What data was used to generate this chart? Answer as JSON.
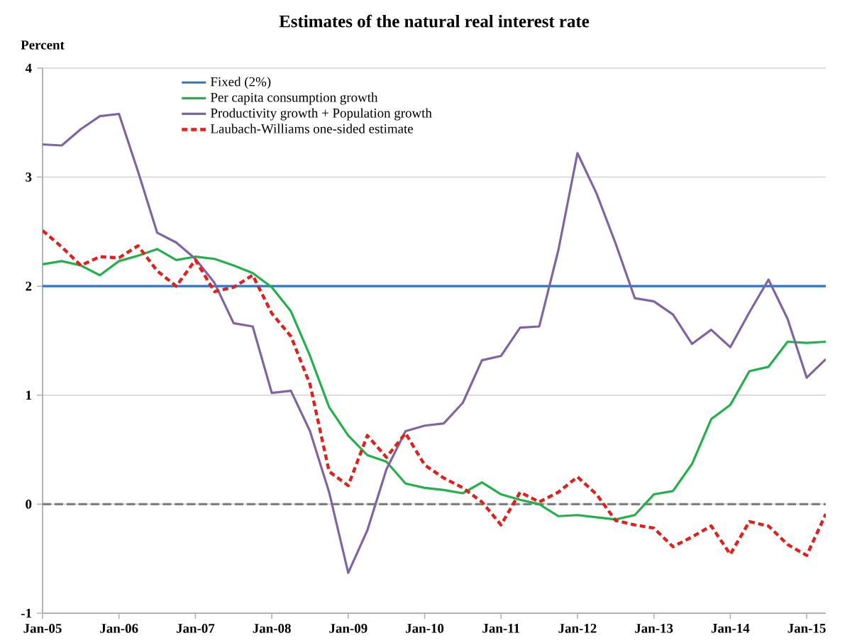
{
  "chart_data": {
    "type": "line",
    "title": "Estimates of the natural real interest rate",
    "ylabel": "Percent",
    "x": [
      "2005-01",
      "2005-04",
      "2005-07",
      "2005-10",
      "2006-01",
      "2006-04",
      "2006-07",
      "2006-10",
      "2007-01",
      "2007-04",
      "2007-07",
      "2007-10",
      "2008-01",
      "2008-04",
      "2008-07",
      "2008-10",
      "2009-01",
      "2009-04",
      "2009-07",
      "2009-10",
      "2010-01",
      "2010-04",
      "2010-07",
      "2010-10",
      "2011-01",
      "2011-04",
      "2011-07",
      "2011-10",
      "2012-01",
      "2012-04",
      "2012-07",
      "2012-10",
      "2013-01",
      "2013-04",
      "2013-07",
      "2013-10",
      "2014-01",
      "2014-04",
      "2014-07",
      "2014-10",
      "2015-01",
      "2015-04"
    ],
    "series": [
      {
        "name": "Fixed (2%)",
        "color": "#2e75c8",
        "line_style": "solid",
        "values": [
          2,
          2,
          2,
          2,
          2,
          2,
          2,
          2,
          2,
          2,
          2,
          2,
          2,
          2,
          2,
          2,
          2,
          2,
          2,
          2,
          2,
          2,
          2,
          2,
          2,
          2,
          2,
          2,
          2,
          2,
          2,
          2,
          2,
          2,
          2,
          2,
          2,
          2,
          2,
          2,
          2,
          2
        ]
      },
      {
        "name": "Per capita consumption growth",
        "color": "#22b04a",
        "line_style": "solid",
        "values": [
          2.2,
          2.23,
          2.19,
          2.1,
          2.23,
          2.28,
          2.34,
          2.24,
          2.27,
          2.25,
          2.19,
          2.12,
          1.99,
          1.77,
          1.36,
          0.89,
          0.63,
          0.45,
          0.39,
          0.19,
          0.15,
          0.13,
          0.1,
          0.2,
          0.09,
          0.04,
          0.0,
          -0.11,
          -0.1,
          -0.12,
          -0.14,
          -0.1,
          0.09,
          0.12,
          0.37,
          0.78,
          0.91,
          1.22,
          1.26,
          1.49,
          1.48,
          1.49
        ]
      },
      {
        "name": "Productivity growth + Population growth",
        "color": "#8064a2",
        "line_style": "solid",
        "values": [
          3.3,
          3.29,
          3.44,
          3.56,
          3.58,
          3.05,
          2.49,
          2.4,
          2.25,
          2.03,
          1.66,
          1.63,
          1.02,
          1.04,
          0.67,
          0.11,
          -0.63,
          -0.24,
          0.32,
          0.67,
          0.72,
          0.74,
          0.93,
          1.32,
          1.36,
          1.62,
          1.63,
          2.33,
          3.22,
          2.85,
          2.39,
          1.89,
          1.86,
          1.74,
          1.47,
          1.6,
          1.44,
          1.76,
          2.06,
          1.7,
          1.16,
          1.33
        ]
      },
      {
        "name": "Laubach-Williams one-sided estimate",
        "color": "#e0201b",
        "line_style": "dashed",
        "values": [
          2.51,
          2.36,
          2.19,
          2.27,
          2.26,
          2.37,
          2.14,
          2.0,
          2.24,
          1.95,
          1.99,
          2.1,
          1.75,
          1.54,
          1.1,
          0.3,
          0.17,
          0.63,
          0.43,
          0.65,
          0.36,
          0.24,
          0.15,
          0.02,
          -0.19,
          0.11,
          0.02,
          0.11,
          0.25,
          0.09,
          -0.15,
          -0.19,
          -0.22,
          -0.39,
          -0.3,
          -0.2,
          -0.46,
          -0.16,
          -0.2,
          -0.37,
          -0.47,
          -0.09
        ]
      }
    ],
    "xlim": [
      "2005-01",
      "2015-04"
    ],
    "xticks": [
      {
        "value": "2005-01",
        "label": "Jan-05"
      },
      {
        "value": "2006-01",
        "label": "Jan-06"
      },
      {
        "value": "2007-01",
        "label": "Jan-07"
      },
      {
        "value": "2008-01",
        "label": "Jan-08"
      },
      {
        "value": "2009-01",
        "label": "Jan-09"
      },
      {
        "value": "2010-01",
        "label": "Jan-10"
      },
      {
        "value": "2011-01",
        "label": "Jan-11"
      },
      {
        "value": "2012-01",
        "label": "Jan-12"
      },
      {
        "value": "2013-01",
        "label": "Jan-13"
      },
      {
        "value": "2014-01",
        "label": "Jan-14"
      },
      {
        "value": "2015-01",
        "label": "Jan-15"
      }
    ],
    "ylim": [
      -1,
      4
    ],
    "yticks": [
      -1,
      0,
      1,
      2,
      3,
      4
    ],
    "ref_lines": [
      {
        "axis": "y",
        "value": 0,
        "color": "#808080",
        "line_style": "dashed"
      }
    ],
    "grid": "y",
    "legend": "top left"
  }
}
